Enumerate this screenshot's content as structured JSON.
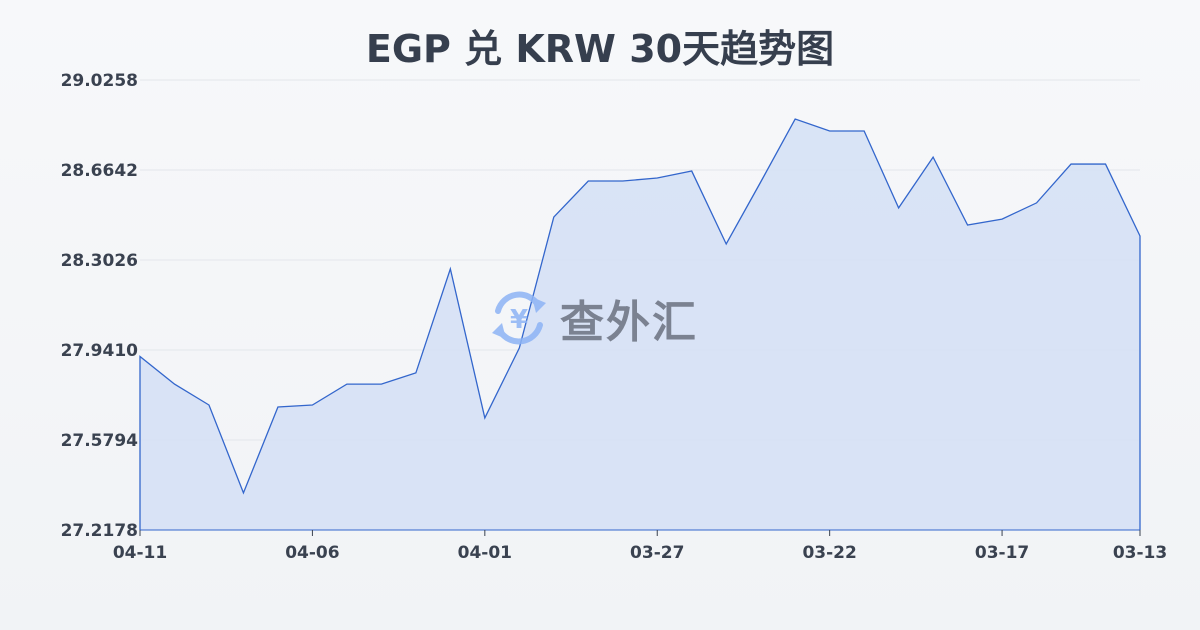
{
  "chart_data": {
    "type": "area",
    "title": "EGP 兑 KRW 30天趋势图",
    "xlabel": "",
    "ylabel": "",
    "ylim": [
      27.2178,
      29.0258
    ],
    "y_ticks": [
      "29.0258",
      "28.6642",
      "28.3026",
      "27.9410",
      "27.5794",
      "27.2178"
    ],
    "x_ticks": [
      "04-11",
      "04-06",
      "04-01",
      "03-27",
      "03-22",
      "03-17",
      "03-13"
    ],
    "x": [
      "04-11",
      "04-10",
      "04-09",
      "04-08",
      "04-07",
      "04-06",
      "04-05",
      "04-04",
      "04-03",
      "04-02",
      "04-01",
      "03-31",
      "03-30",
      "03-29",
      "03-28",
      "03-27",
      "03-26",
      "03-25",
      "03-24",
      "03-23",
      "03-22",
      "03-21",
      "03-20",
      "03-19",
      "03-18",
      "03-17",
      "03-16",
      "03-15",
      "03-14",
      "03-13"
    ],
    "values": [
      27.915,
      27.804,
      27.72,
      27.367,
      27.712,
      27.72,
      27.804,
      27.804,
      27.849,
      28.267,
      27.668,
      27.949,
      28.475,
      28.62,
      28.62,
      28.632,
      28.66,
      28.367,
      28.616,
      28.869,
      28.821,
      28.821,
      28.512,
      28.716,
      28.443,
      28.467,
      28.532,
      28.688,
      28.688,
      28.399
    ],
    "grid": true,
    "line_color": "#3366cc",
    "fill_color": "#d6e1f5"
  },
  "watermark": {
    "text": "查外汇",
    "icon": "yen-exchange-icon"
  }
}
